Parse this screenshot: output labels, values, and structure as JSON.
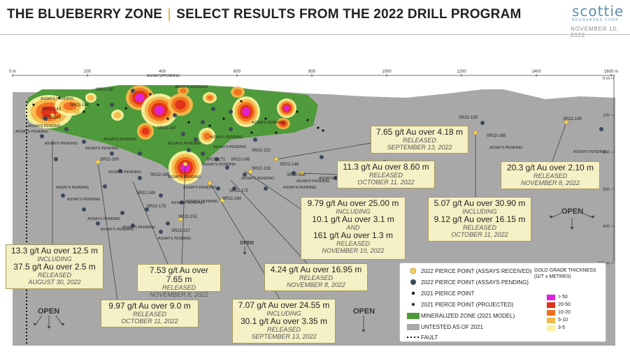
{
  "header": {
    "title_left": "THE BLUEBERRY ZONE",
    "title_sep": "|",
    "title_right": "SELECT RESULTS FROM THE 2022 DRILL PROGRAM",
    "logo": "scottie",
    "logo_sub": "RESOURCES CORP",
    "date": "NOVEMBER 10, 2022"
  },
  "axis": {
    "top_ticks": [
      "0 m",
      "200",
      "400",
      "600",
      "800",
      "1000",
      "1200",
      "1400",
      "1600 m"
    ],
    "right_ticks": [
      "0 m",
      "100",
      "200",
      "300",
      "400",
      "500 m"
    ]
  },
  "drill_labels": [
    "SR22-167",
    "SR22-143",
    "SR22-144",
    "SR22-145",
    "SR22-147",
    "SR22-152",
    "SR22-171",
    "SR22-168",
    "SR22-148",
    "SR22-153",
    "SR22-150",
    "SR22-160",
    "SR22-189",
    "SR22-175",
    "SR22-184",
    "SR22-149",
    "SR22-178",
    "SR22-151",
    "SR22-157",
    "SR22-159",
    "SR22-169",
    "SR22-165"
  ],
  "pending_label": "ASSAYS PENDING",
  "open_label": "OPEN",
  "callouts": [
    {
      "lines": [
        "13.3 g/t Au over 12.5 m"
      ],
      "inc": "INCLUDING",
      "sub": "37.5 g/t Au over 2.5 m",
      "rel": "RELEASED",
      "date": "AUGUST 30, 2022"
    },
    {
      "lines": [
        "7.53 g/t Au over 7.65 m"
      ],
      "rel": "RELEASED",
      "date": "NOVEMBER 8, 2022"
    },
    {
      "lines": [
        "9.97 g/t Au over 9.0 m"
      ],
      "rel": "RELEASED",
      "date": "OCTOBER 11, 2022"
    },
    {
      "lines": [
        "7.07 g/t Au over 24.55 m"
      ],
      "inc": "INCLUDING",
      "sub": "30.1 g/t Au over 3.35 m",
      "rel": "RELEASED",
      "date": "SEPTEMBER 13, 2022"
    },
    {
      "lines": [
        "4.24 g/t Au over 16.95 m"
      ],
      "rel": "RELEASED",
      "date": "NOVEMBER 8, 2022"
    },
    {
      "lines": [
        "9.79 g/t Au over 25.00 m"
      ],
      "inc": "INCLUDING",
      "sub": "10.1 g/t Au over 3.1 m",
      "and": "AND",
      "sub2": "161 g/t Au over 1.3 m",
      "rel": "RELEASED",
      "date": "NOVEMBER 10, 2022"
    },
    {
      "lines": [
        "11.3 g/t Au over 8.60 m"
      ],
      "rel": "RELEASED",
      "date": "OCTOBER 11, 2022"
    },
    {
      "lines": [
        "7.65 g/t Au over 4.18 m"
      ],
      "rel": "RELEASED",
      "date": "SEPTEMBER 13, 2022"
    },
    {
      "lines": [
        "5.07 g/t Au over 30.90 m"
      ],
      "inc": "INCLUDING",
      "sub": "9.12 g/t Au over 16.15 m",
      "rel": "RELEASED",
      "date": "OCTOBER 11, 2022"
    },
    {
      "lines": [
        "20.3 g/t Au over 2.10 m"
      ],
      "rel": "RELEASED",
      "date": "NOVEMBER 8, 2022"
    }
  ],
  "legend": {
    "items": [
      "2022 PIERCE POINT (ASSAYS RECEIVED)",
      "2022 PIERCE POINT (ASSAYS PENDING)",
      "2021 PIERCE POINT",
      "2021 PIERCE POINT (PROJECTED)",
      "MINERALIZED ZONE (2021 MODEL)",
      "UNTESTED AS OF 2021",
      "FAULT"
    ],
    "grade_title": "GOLD GRADE THICKNESS",
    "grade_unit": "(G/T x METRES)",
    "grades": [
      {
        "label": "> 50",
        "color": "#e020e0"
      },
      {
        "label": "20-50",
        "color": "#e0301a"
      },
      {
        "label": "10-20",
        "color": "#f07020"
      },
      {
        "label": "5-10",
        "color": "#f5b84a"
      },
      {
        "label": "3-5",
        "color": "#f8f2a0"
      }
    ],
    "colors": {
      "received": "#f6d15a",
      "pending": "#3d4a5c",
      "zone": "#4f9a3a",
      "untested": "#a8a8a8"
    }
  }
}
